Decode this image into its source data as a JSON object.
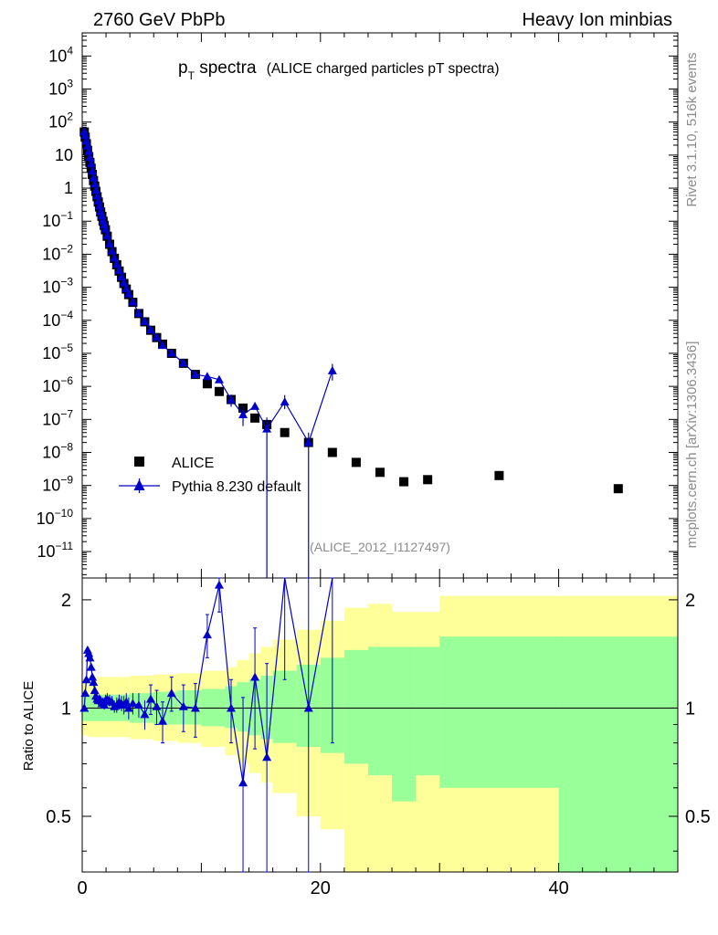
{
  "header": {
    "left": "2760 GeV PbPb",
    "right": "Heavy Ion minbias"
  },
  "side_labels": {
    "rivet": "Rivet 3.1.10,  516k events",
    "mcplots": "mcplots.cern.ch [arXiv:1306.3436]"
  },
  "chart_data": [
    {
      "type": "scatter",
      "title_main": "p",
      "title_sub": "T",
      "title_rest": " spectra",
      "subtitle": "(ALICE charged particles pT spectra)",
      "analysis_label": "(ALICE_2012_I1127497)",
      "yscale": "log",
      "xlim": [
        0,
        50
      ],
      "ylim_exp": [
        -11.8,
        4.7
      ],
      "y_ticks": [
        {
          "exp": 4,
          "label": "10",
          "sup": "4"
        },
        {
          "exp": 3,
          "label": "10",
          "sup": "3"
        },
        {
          "exp": 2,
          "label": "10",
          "sup": "2"
        },
        {
          "exp": 1,
          "label": "10",
          "sup": ""
        },
        {
          "exp": 0,
          "label": "1",
          "sup": ""
        },
        {
          "exp": -1,
          "label": "10",
          "sup": "−1"
        },
        {
          "exp": -2,
          "label": "10",
          "sup": "−2"
        },
        {
          "exp": -3,
          "label": "10",
          "sup": "−3"
        },
        {
          "exp": -4,
          "label": "10",
          "sup": "−4"
        },
        {
          "exp": -5,
          "label": "10",
          "sup": "−5"
        },
        {
          "exp": -6,
          "label": "10",
          "sup": "−6"
        },
        {
          "exp": -7,
          "label": "10",
          "sup": "−7"
        },
        {
          "exp": -8,
          "label": "10",
          "sup": "−8"
        },
        {
          "exp": -9,
          "label": "10",
          "sup": "−9"
        },
        {
          "exp": -10,
          "label": "10",
          "sup": "−10"
        },
        {
          "exp": -11,
          "label": "10",
          "sup": "−11"
        }
      ],
      "legend_position": "middle-left",
      "series": [
        {
          "name": "ALICE",
          "color": "#000000",
          "marker": "square",
          "x": [
            0.175,
            0.25,
            0.35,
            0.45,
            0.55,
            0.65,
            0.75,
            0.85,
            0.95,
            1.05,
            1.15,
            1.25,
            1.35,
            1.45,
            1.55,
            1.65,
            1.75,
            1.85,
            1.95,
            2.1,
            2.3,
            2.5,
            2.7,
            2.9,
            3.1,
            3.3,
            3.5,
            3.7,
            3.9,
            4.25,
            4.75,
            5.25,
            5.75,
            6.25,
            6.75,
            7.5,
            8.5,
            9.5,
            10.5,
            11.5,
            12.5,
            13.5,
            14.5,
            15.5,
            17,
            19,
            21,
            23,
            25,
            27,
            29,
            35,
            45
          ],
          "y": [
            50,
            35,
            22,
            14,
            9,
            6,
            4,
            2.6,
            1.7,
            1.15,
            0.8,
            0.55,
            0.38,
            0.27,
            0.19,
            0.14,
            0.1,
            0.075,
            0.055,
            0.035,
            0.02,
            0.012,
            0.0075,
            0.0048,
            0.0031,
            0.002,
            0.0013,
            0.00088,
            0.0006,
            0.00035,
            0.00016,
            9e-05,
            5e-05,
            3e-05,
            1.9e-05,
            1e-05,
            5e-06,
            2.3e-06,
            1.2e-06,
            7e-07,
            4e-07,
            2.2e-07,
            1.1e-07,
            7e-08,
            4e-08,
            2e-08,
            1e-08,
            5e-09,
            2.5e-09,
            1.3e-09,
            1.5e-09,
            2e-09,
            8e-10
          ]
        },
        {
          "name": "Pythia 8.230 default",
          "color": "#0000cc",
          "marker": "triangle",
          "x": [
            0.175,
            0.25,
            0.35,
            0.45,
            0.55,
            0.65,
            0.75,
            0.85,
            0.95,
            1.05,
            1.15,
            1.25,
            1.35,
            1.45,
            1.55,
            1.65,
            1.75,
            1.85,
            1.95,
            2.1,
            2.3,
            2.5,
            2.7,
            2.9,
            3.1,
            3.3,
            3.5,
            3.7,
            3.9,
            4.25,
            4.75,
            5.25,
            5.75,
            6.25,
            6.75,
            7.5,
            8.5,
            9.5,
            10.5,
            11.5,
            12.5,
            13.5,
            14.5,
            15.5,
            17,
            19,
            21
          ],
          "y": [
            52,
            40,
            27,
            19,
            13,
            8.5,
            5.5,
            3.3,
            2.1,
            1.35,
            0.88,
            0.6,
            0.41,
            0.29,
            0.2,
            0.148,
            0.105,
            0.078,
            0.058,
            0.037,
            0.021,
            0.0127,
            0.0078,
            0.005,
            0.0033,
            0.0021,
            0.00138,
            0.00092,
            0.00064,
            0.00036,
            0.000165,
            9.3e-05,
            5.2e-05,
            3.1e-05,
            1.75e-05,
            1.03e-05,
            5.1e-06,
            2.3e-06,
            2e-06,
            1.6e-06,
            4e-07,
            1.4e-07,
            2.5e-07,
            5.2e-08,
            3.4e-07,
            2e-08,
            3e-06
          ]
        }
      ]
    },
    {
      "type": "line",
      "ylabel": "Ratio to ALICE",
      "yscale": "log",
      "xlim": [
        0,
        50
      ],
      "ylim": [
        0.35,
        2.3
      ],
      "x_ticks": [
        0,
        20,
        40
      ],
      "y_ticks": [
        0.5,
        1,
        2
      ],
      "band_edges": [
        0,
        0.5,
        1,
        2,
        4,
        6,
        8,
        10,
        12,
        13,
        14,
        15,
        16,
        18,
        20,
        22,
        24,
        26,
        28,
        30,
        40,
        50
      ],
      "band_yellow_lo": [
        0.84,
        0.83,
        0.83,
        0.83,
        0.82,
        0.81,
        0.8,
        0.78,
        0.74,
        0.7,
        0.66,
        0.62,
        0.58,
        0.5,
        0.46,
        0.35,
        0.3,
        0.3,
        0.3,
        0.3,
        0.3
      ],
      "band_yellow_hi": [
        1.2,
        1.22,
        1.22,
        1.22,
        1.23,
        1.24,
        1.25,
        1.27,
        1.3,
        1.36,
        1.42,
        1.48,
        1.55,
        1.65,
        1.75,
        1.9,
        1.95,
        1.85,
        1.85,
        2.05,
        2.05
      ],
      "band_green_lo": [
        0.92,
        0.92,
        0.92,
        0.92,
        0.91,
        0.9,
        0.9,
        0.89,
        0.88,
        0.86,
        0.84,
        0.82,
        0.8,
        0.78,
        0.75,
        0.7,
        0.65,
        0.55,
        0.65,
        0.6,
        0.3
      ],
      "band_green_hi": [
        1.09,
        1.09,
        1.09,
        1.09,
        1.1,
        1.11,
        1.12,
        1.13,
        1.15,
        1.18,
        1.2,
        1.23,
        1.27,
        1.32,
        1.38,
        1.45,
        1.48,
        1.48,
        1.48,
        1.58,
        1.58
      ],
      "ratio": {
        "name": "Pythia 8.230 default",
        "x": [
          0.175,
          0.25,
          0.35,
          0.45,
          0.55,
          0.65,
          0.75,
          0.85,
          0.95,
          1.05,
          1.15,
          1.25,
          1.35,
          1.45,
          1.55,
          1.65,
          1.75,
          1.85,
          1.95,
          2.1,
          2.3,
          2.5,
          2.7,
          2.9,
          3.1,
          3.3,
          3.5,
          3.7,
          3.9,
          4.25,
          4.75,
          5.25,
          5.75,
          6.25,
          6.75,
          7.5,
          8.5,
          9.5,
          10.5,
          11.5,
          12.5,
          13.5,
          14.5,
          15.5,
          17,
          19,
          21
        ],
        "y": [
          1.0,
          1.1,
          1.2,
          1.45,
          1.42,
          1.38,
          1.3,
          1.22,
          1.18,
          1.12,
          1.08,
          1.06,
          1.05,
          1.06,
          1.05,
          1.03,
          1.04,
          1.02,
          1.05,
          1.06,
          1.05,
          1.04,
          1.01,
          1.02,
          1.04,
          1.03,
          1.02,
          1.04,
          1.0,
          1.03,
          1.02,
          0.96,
          1.06,
          1.01,
          0.92,
          1.1,
          1.01,
          1.0,
          1.6,
          2.2,
          1.0,
          0.62,
          1.22,
          0.73,
          2.4,
          1.0,
          2.6
        ],
        "err": [
          0.02,
          0.02,
          0.02,
          0.02,
          0.02,
          0.02,
          0.03,
          0.03,
          0.03,
          0.03,
          0.03,
          0.03,
          0.03,
          0.03,
          0.03,
          0.03,
          0.03,
          0.03,
          0.04,
          0.04,
          0.04,
          0.04,
          0.04,
          0.05,
          0.05,
          0.05,
          0.06,
          0.06,
          0.07,
          0.07,
          0.08,
          0.09,
          0.1,
          0.11,
          0.12,
          0.12,
          0.15,
          0.17,
          0.22,
          0.35,
          0.2,
          0.45,
          0.45,
          0.6,
          1.2,
          1.5,
          1.8
        ]
      }
    }
  ]
}
